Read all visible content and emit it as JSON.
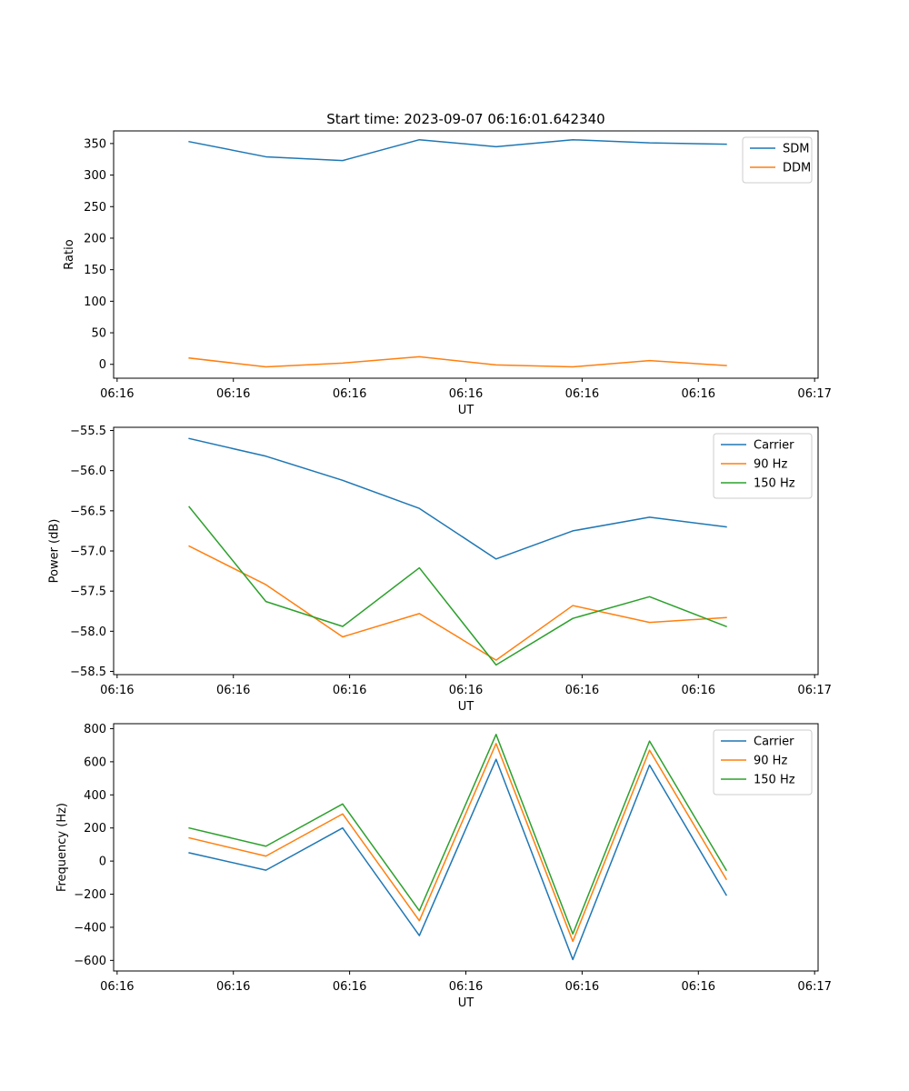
{
  "chart_data": [
    {
      "type": "line",
      "title": "Start time: 2023-09-07 06:16:01.642340",
      "xlabel": "UT",
      "ylabel": "Ratio",
      "x": [
        0.62,
        1.28,
        1.94,
        2.6,
        3.26,
        3.92,
        4.58,
        5.24
      ],
      "xlim": [
        -0.03,
        6.03
      ],
      "xticks": [
        0,
        1,
        2,
        3,
        4,
        5,
        6
      ],
      "xtick_labels": [
        "06:16",
        "06:16",
        "06:16",
        "06:16",
        "06:16",
        "06:16",
        "06:17"
      ],
      "ylim": [
        -22,
        370
      ],
      "yticks": [
        0,
        50,
        100,
        150,
        200,
        250,
        300,
        350
      ],
      "ytick_labels": [
        "0",
        "50",
        "100",
        "150",
        "200",
        "250",
        "300",
        "350"
      ],
      "grid": false,
      "legend_position": "top-right",
      "series": [
        {
          "name": "SDM",
          "color": "#1f77b4",
          "values": [
            353,
            329,
            323,
            356,
            345,
            356,
            351,
            349
          ]
        },
        {
          "name": "DDM",
          "color": "#ff7f0e",
          "values": [
            10,
            -4,
            2,
            12,
            -1,
            -4,
            6,
            -2
          ]
        }
      ]
    },
    {
      "type": "line",
      "title": "",
      "xlabel": "UT",
      "ylabel": "Power (dB)",
      "x": [
        0.62,
        1.28,
        1.94,
        2.6,
        3.26,
        3.92,
        4.58,
        5.24
      ],
      "xlim": [
        -0.03,
        6.03
      ],
      "xticks": [
        0,
        1,
        2,
        3,
        4,
        5,
        6
      ],
      "xtick_labels": [
        "06:16",
        "06:16",
        "06:16",
        "06:16",
        "06:16",
        "06:16",
        "06:17"
      ],
      "ylim": [
        -58.54,
        -55.46
      ],
      "yticks": [
        -58.5,
        -58.0,
        -57.5,
        -57.0,
        -56.5,
        -56.0,
        -55.5
      ],
      "ytick_labels": [
        "−58.5",
        "−58.0",
        "−57.5",
        "−57.0",
        "−56.5",
        "−56.0",
        "−55.5"
      ],
      "grid": false,
      "legend_position": "top-right",
      "series": [
        {
          "name": "Carrier",
          "color": "#1f77b4",
          "values": [
            -55.6,
            -55.82,
            -56.12,
            -56.47,
            -57.1,
            -56.75,
            -56.58,
            -56.7
          ]
        },
        {
          "name": "90 Hz",
          "color": "#ff7f0e",
          "values": [
            -56.94,
            -57.42,
            -58.07,
            -57.78,
            -58.36,
            -57.68,
            -57.89,
            -57.83
          ]
        },
        {
          "name": "150 Hz",
          "color": "#2ca02c",
          "values": [
            -56.45,
            -57.63,
            -57.94,
            -57.21,
            -58.42,
            -57.84,
            -57.57,
            -57.94
          ]
        }
      ]
    },
    {
      "type": "line",
      "title": "",
      "xlabel": "UT",
      "ylabel": "Frequency (Hz)",
      "x": [
        0.62,
        1.28,
        1.94,
        2.6,
        3.26,
        3.92,
        4.58,
        5.24
      ],
      "xlim": [
        -0.03,
        6.03
      ],
      "xticks": [
        0,
        1,
        2,
        3,
        4,
        5,
        6
      ],
      "xtick_labels": [
        "06:16",
        "06:16",
        "06:16",
        "06:16",
        "06:16",
        "06:16",
        "06:17"
      ],
      "ylim": [
        -664,
        830
      ],
      "yticks": [
        -600,
        -400,
        -200,
        0,
        200,
        400,
        600,
        800
      ],
      "ytick_labels": [
        "−600",
        "−400",
        "−200",
        "0",
        "200",
        "400",
        "600",
        "800"
      ],
      "grid": false,
      "legend_position": "top-right",
      "series": [
        {
          "name": "Carrier",
          "color": "#1f77b4",
          "values": [
            50,
            -55,
            200,
            -450,
            615,
            -595,
            580,
            -205
          ]
        },
        {
          "name": "90 Hz",
          "color": "#ff7f0e",
          "values": [
            140,
            30,
            285,
            -360,
            710,
            -485,
            670,
            -110
          ]
        },
        {
          "name": "150 Hz",
          "color": "#2ca02c",
          "values": [
            200,
            90,
            345,
            -300,
            765,
            -440,
            725,
            -55
          ]
        }
      ]
    }
  ]
}
